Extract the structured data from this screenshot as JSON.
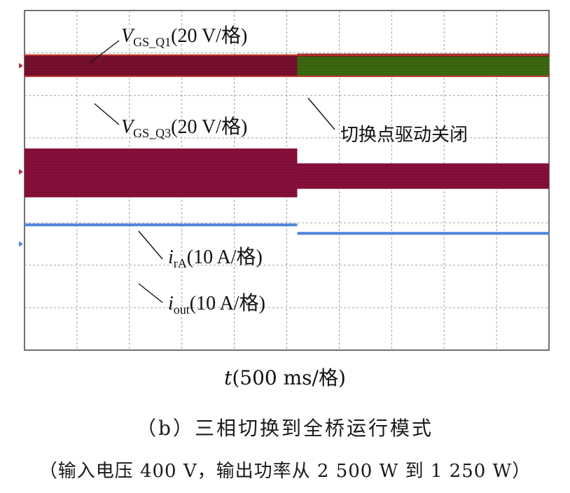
{
  "chart_data": {
    "type": "line",
    "x_label": {
      "var": "t",
      "unit": "(500 ms/格)"
    },
    "grid": true,
    "divisions": {
      "x": 10,
      "y": 8
    },
    "event_time_div": 5.2,
    "series": [
      {
        "name": "V_GS_Q1",
        "label_var": "V",
        "label_sub": "GS_Q1",
        "scale": "(20 V/格)",
        "color": "#7a1030",
        "before_div": [
          1.05,
          1.55
        ],
        "after_div": [
          1.05,
          1.05
        ]
      },
      {
        "name": "V_GS_Q3",
        "label_var": "V",
        "label_sub": "GS_Q3",
        "scale": "(20 V/格)",
        "color": "#3d6b10",
        "before_div": [
          1.05,
          1.55
        ],
        "after_div": [
          1.05,
          1.55
        ]
      },
      {
        "name": "i_rA",
        "label_var": "i",
        "label_sub": "rA",
        "scale": "(10 A/格)",
        "color": "#8a0f3c",
        "before_div": [
          3.25,
          4.4
        ],
        "after_div": [
          3.6,
          4.2
        ]
      },
      {
        "name": "i_out",
        "label_var": "i",
        "label_sub": "out",
        "scale": "(10 A/格)",
        "color": "#4f86d8",
        "before_div": [
          5.05,
          5.05
        ],
        "after_div": [
          5.25,
          5.25
        ]
      }
    ],
    "annotations": [
      "切换点驱动关闭"
    ]
  },
  "caption": {
    "line1": "（b）三相切换到全桥运行模式",
    "line2": "（输入电压 400 V，输出功率从 2 500 W 到 1 250 W）"
  }
}
